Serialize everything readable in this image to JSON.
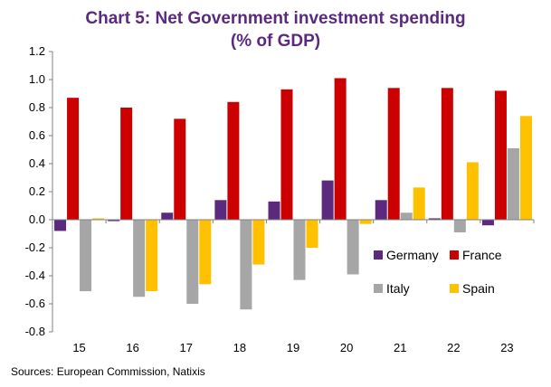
{
  "title_line_1": "Chart 5: Net Government investment spending",
  "title_line_2": "(% of GDP)",
  "source": "Sources: European Commission, Natixis",
  "chart_data": {
    "type": "bar",
    "title": "Chart 5: Net Government investment spending (% of GDP)",
    "categories": [
      "15",
      "16",
      "17",
      "18",
      "19",
      "20",
      "21",
      "22",
      "23"
    ],
    "ylim": [
      -0.8,
      1.2
    ],
    "yticks": [
      "1.2",
      "1.0",
      "0.8",
      "0.6",
      "0.4",
      "0.2",
      "0.0",
      "-0.2",
      "-0.4",
      "-0.6",
      "-0.8"
    ],
    "grid": false,
    "legend_position": "bottom-right",
    "series": [
      {
        "name": "Germany",
        "color": "#5b2a7e",
        "values": [
          -0.08,
          -0.01,
          0.05,
          0.14,
          0.13,
          0.28,
          0.14,
          0.01,
          -0.04
        ]
      },
      {
        "name": "France",
        "color": "#cc0000",
        "values": [
          0.87,
          0.8,
          0.72,
          0.84,
          0.93,
          1.01,
          0.94,
          0.94,
          0.92
        ]
      },
      {
        "name": "Italy",
        "color": "#a6a6a6",
        "values": [
          -0.51,
          -0.55,
          -0.6,
          -0.64,
          -0.43,
          -0.39,
          0.05,
          -0.09,
          0.51
        ]
      },
      {
        "name": "Spain",
        "color": "#ffc000",
        "values": [
          0.01,
          -0.51,
          -0.46,
          -0.32,
          -0.2,
          -0.03,
          0.23,
          0.41,
          0.74
        ]
      }
    ]
  }
}
